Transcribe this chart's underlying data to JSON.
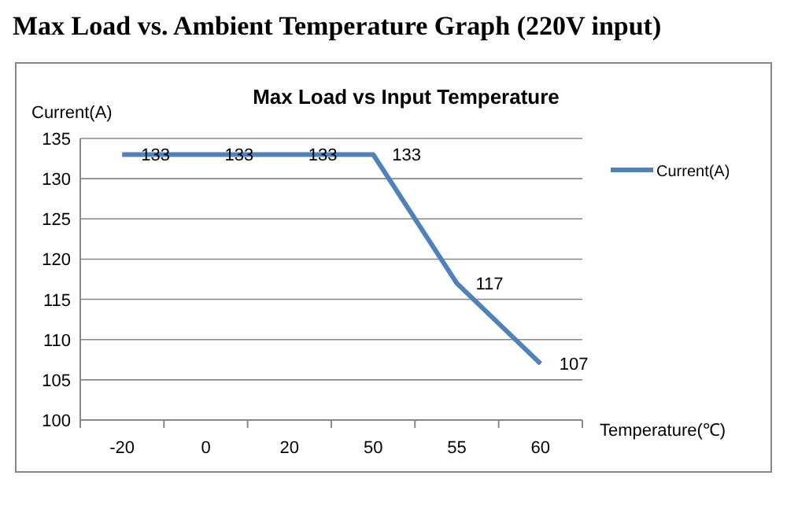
{
  "chart_data": {
    "type": "line",
    "title": "Max Load vs. Ambient Temperature Graph (220V input)",
    "subtitle": "Max Load vs Input Temperature",
    "xlabel": "Temperature(℃)",
    "ylabel": "Current(A)",
    "categories": [
      "-20",
      "0",
      "20",
      "50",
      "55",
      "60"
    ],
    "series": [
      {
        "name": "Current(A)",
        "color": "#4f81bd",
        "values": [
          133,
          133,
          133,
          133,
          117,
          107
        ]
      }
    ],
    "ylim": [
      100,
      135
    ],
    "yticks": [
      100,
      105,
      110,
      115,
      120,
      125,
      130,
      135
    ],
    "grid": "y",
    "legend": "right",
    "data_labels": true,
    "marker": "none",
    "line_style": "solid"
  }
}
